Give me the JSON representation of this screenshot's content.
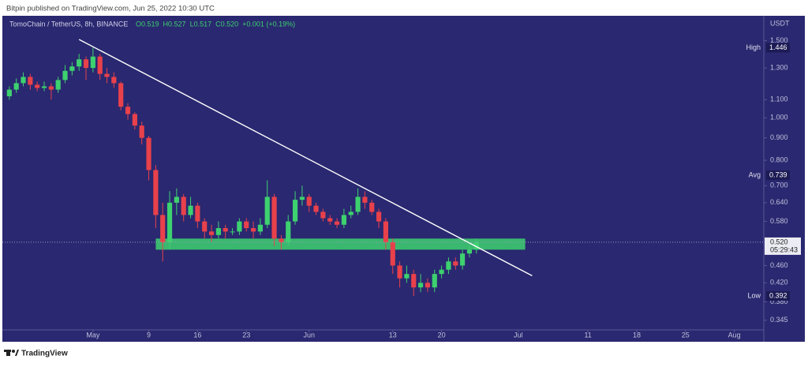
{
  "header": {
    "text": "Bitpin published on TradingView.com, Jun 25, 2022 10:30 UTC"
  },
  "chart_data": {
    "type": "candlestick",
    "symbol": "TomoChain / TetherUS, 8h, BINANCE",
    "quote": [
      "O0.519",
      "H0.527",
      "L0.517",
      "C0.520",
      "+0.001 (+0.19%)"
    ],
    "currency": "USDT",
    "x": [
      "2022-04-19",
      "2022-04-20",
      "2022-04-21",
      "2022-04-22",
      "2022-04-23",
      "2022-04-24",
      "2022-04-25",
      "2022-04-26",
      "2022-04-27",
      "2022-04-28",
      "2022-04-29",
      "2022-04-30",
      "2022-05-01",
      "2022-05-02",
      "2022-05-03",
      "2022-05-04",
      "2022-05-05",
      "2022-05-06",
      "2022-05-07",
      "2022-05-08",
      "2022-05-09",
      "2022-05-10",
      "2022-05-11",
      "2022-05-12",
      "2022-05-13",
      "2022-05-14",
      "2022-05-15",
      "2022-05-16",
      "2022-05-17",
      "2022-05-18",
      "2022-05-19",
      "2022-05-20",
      "2022-05-21",
      "2022-05-22",
      "2022-05-23",
      "2022-05-24",
      "2022-05-25",
      "2022-05-26",
      "2022-05-27",
      "2022-05-28",
      "2022-05-29",
      "2022-05-30",
      "2022-05-31",
      "2022-06-01",
      "2022-06-02",
      "2022-06-03",
      "2022-06-04",
      "2022-06-05",
      "2022-06-06",
      "2022-06-07",
      "2022-06-08",
      "2022-06-09",
      "2022-06-10",
      "2022-06-11",
      "2022-06-12",
      "2022-06-13",
      "2022-06-14",
      "2022-06-15",
      "2022-06-16",
      "2022-06-17",
      "2022-06-18",
      "2022-06-19",
      "2022-06-20",
      "2022-06-21",
      "2022-06-22",
      "2022-06-23",
      "2022-06-24",
      "2022-06-25"
    ],
    "open": [
      1.12,
      1.16,
      1.2,
      1.24,
      1.19,
      1.17,
      1.18,
      1.16,
      1.22,
      1.28,
      1.31,
      1.36,
      1.3,
      1.38,
      1.26,
      1.24,
      1.2,
      1.06,
      1.02,
      0.96,
      0.9,
      0.76,
      0.6,
      0.52,
      0.64,
      0.66,
      0.6,
      0.63,
      0.58,
      0.55,
      0.54,
      0.56,
      0.55,
      0.55,
      0.58,
      0.56,
      0.55,
      0.57,
      0.66,
      0.53,
      0.52,
      0.58,
      0.65,
      0.66,
      0.63,
      0.61,
      0.59,
      0.58,
      0.57,
      0.6,
      0.61,
      0.66,
      0.64,
      0.61,
      0.58,
      0.52,
      0.46,
      0.43,
      0.44,
      0.41,
      0.42,
      0.41,
      0.44,
      0.45,
      0.47,
      0.46,
      0.49,
      0.5
    ],
    "high": [
      1.18,
      1.23,
      1.27,
      1.26,
      1.21,
      1.21,
      1.2,
      1.24,
      1.32,
      1.34,
      1.4,
      1.38,
      1.446,
      1.4,
      1.3,
      1.27,
      1.21,
      1.08,
      1.03,
      0.98,
      0.91,
      0.78,
      0.64,
      0.68,
      0.69,
      0.67,
      0.66,
      0.64,
      0.59,
      0.57,
      0.58,
      0.57,
      0.56,
      0.59,
      0.59,
      0.58,
      0.59,
      0.72,
      0.67,
      0.54,
      0.6,
      0.68,
      0.7,
      0.67,
      0.64,
      0.62,
      0.6,
      0.59,
      0.62,
      0.63,
      0.69,
      0.68,
      0.65,
      0.62,
      0.59,
      0.53,
      0.47,
      0.46,
      0.45,
      0.44,
      0.43,
      0.45,
      0.46,
      0.48,
      0.48,
      0.5,
      0.51,
      0.53
    ],
    "low": [
      1.1,
      1.14,
      1.18,
      1.16,
      1.15,
      1.15,
      1.1,
      1.14,
      1.2,
      1.25,
      1.28,
      1.22,
      1.27,
      1.22,
      1.2,
      1.17,
      1.04,
      0.99,
      0.94,
      0.87,
      0.72,
      0.56,
      0.47,
      0.5,
      0.6,
      0.58,
      0.59,
      0.56,
      0.53,
      0.52,
      0.53,
      0.53,
      0.54,
      0.54,
      0.55,
      0.53,
      0.54,
      0.56,
      0.51,
      0.5,
      0.51,
      0.57,
      0.63,
      0.61,
      0.6,
      0.58,
      0.57,
      0.56,
      0.56,
      0.59,
      0.6,
      0.62,
      0.6,
      0.56,
      0.5,
      0.44,
      0.41,
      0.42,
      0.392,
      0.4,
      0.4,
      0.4,
      0.43,
      0.44,
      0.45,
      0.45,
      0.48,
      0.49
    ],
    "close": [
      1.16,
      1.2,
      1.24,
      1.19,
      1.17,
      1.18,
      1.16,
      1.22,
      1.28,
      1.31,
      1.36,
      1.3,
      1.38,
      1.26,
      1.24,
      1.2,
      1.06,
      1.02,
      0.96,
      0.9,
      0.76,
      0.6,
      0.52,
      0.64,
      0.66,
      0.6,
      0.63,
      0.58,
      0.55,
      0.54,
      0.56,
      0.55,
      0.55,
      0.58,
      0.56,
      0.55,
      0.57,
      0.66,
      0.53,
      0.52,
      0.58,
      0.65,
      0.66,
      0.63,
      0.61,
      0.59,
      0.58,
      0.57,
      0.6,
      0.61,
      0.66,
      0.64,
      0.61,
      0.58,
      0.52,
      0.46,
      0.43,
      0.44,
      0.41,
      0.42,
      0.41,
      0.44,
      0.45,
      0.47,
      0.46,
      0.49,
      0.5,
      0.52
    ],
    "up_color": "#3dd16f",
    "down_color": "#e8414b",
    "background": "#2a2870",
    "log_scale": true,
    "grid": false,
    "xlim": [
      "2022-04-18",
      "2022-08-05"
    ],
    "xticks": [
      {
        "value": "2022-05-01",
        "label": "May"
      },
      {
        "value": "2022-05-09",
        "label": "9"
      },
      {
        "value": "2022-05-16",
        "label": "16"
      },
      {
        "value": "2022-05-23",
        "label": "23"
      },
      {
        "value": "2022-06-01",
        "label": "Jun"
      },
      {
        "value": "2022-06-13",
        "label": "13"
      },
      {
        "value": "2022-06-20",
        "label": "20"
      },
      {
        "value": "2022-07-01",
        "label": "Jul"
      },
      {
        "value": "2022-07-11",
        "label": "11"
      },
      {
        "value": "2022-07-18",
        "label": "18"
      },
      {
        "value": "2022-07-25",
        "label": "25"
      },
      {
        "value": "2022-08-01",
        "label": "Aug"
      }
    ],
    "ylim": [
      0.312,
      1.71
    ],
    "yticks": [
      {
        "value": 1.5,
        "label": "1.500"
      },
      {
        "value": 1.3,
        "label": "1.300"
      },
      {
        "value": 1.1,
        "label": "1.100"
      },
      {
        "value": 1.0,
        "label": "1.000"
      },
      {
        "value": 0.9,
        "label": "0.900"
      },
      {
        "value": 0.8,
        "label": "0.800"
      },
      {
        "value": 0.7,
        "label": "0.700"
      },
      {
        "value": 0.64,
        "label": "0.640"
      },
      {
        "value": 0.58,
        "label": "0.580"
      },
      {
        "value": 0.46,
        "label": "0.460"
      },
      {
        "value": 0.42,
        "label": "0.420"
      },
      {
        "value": 0.38,
        "label": "0.380"
      },
      {
        "value": 0.345,
        "label": "0.345"
      }
    ],
    "stats": [
      {
        "label": "High",
        "value": 1.446
      },
      {
        "label": "Avg",
        "value": 0.739
      },
      {
        "label": "Low",
        "value": 0.392
      }
    ],
    "last_price": {
      "value": 0.52,
      "label": "0.520"
    },
    "countdown": "05:29:43",
    "trendline": {
      "x": [
        "2022-04-29",
        "2022-07-03"
      ],
      "y": [
        1.51,
        0.436
      ],
      "color": "#ffffff"
    },
    "zone": {
      "x": [
        "2022-05-10",
        "2022-07-02"
      ],
      "y": [
        0.5,
        0.53
      ],
      "color": "#3dd16f"
    }
  },
  "footer": {
    "brand": "TradingView"
  }
}
